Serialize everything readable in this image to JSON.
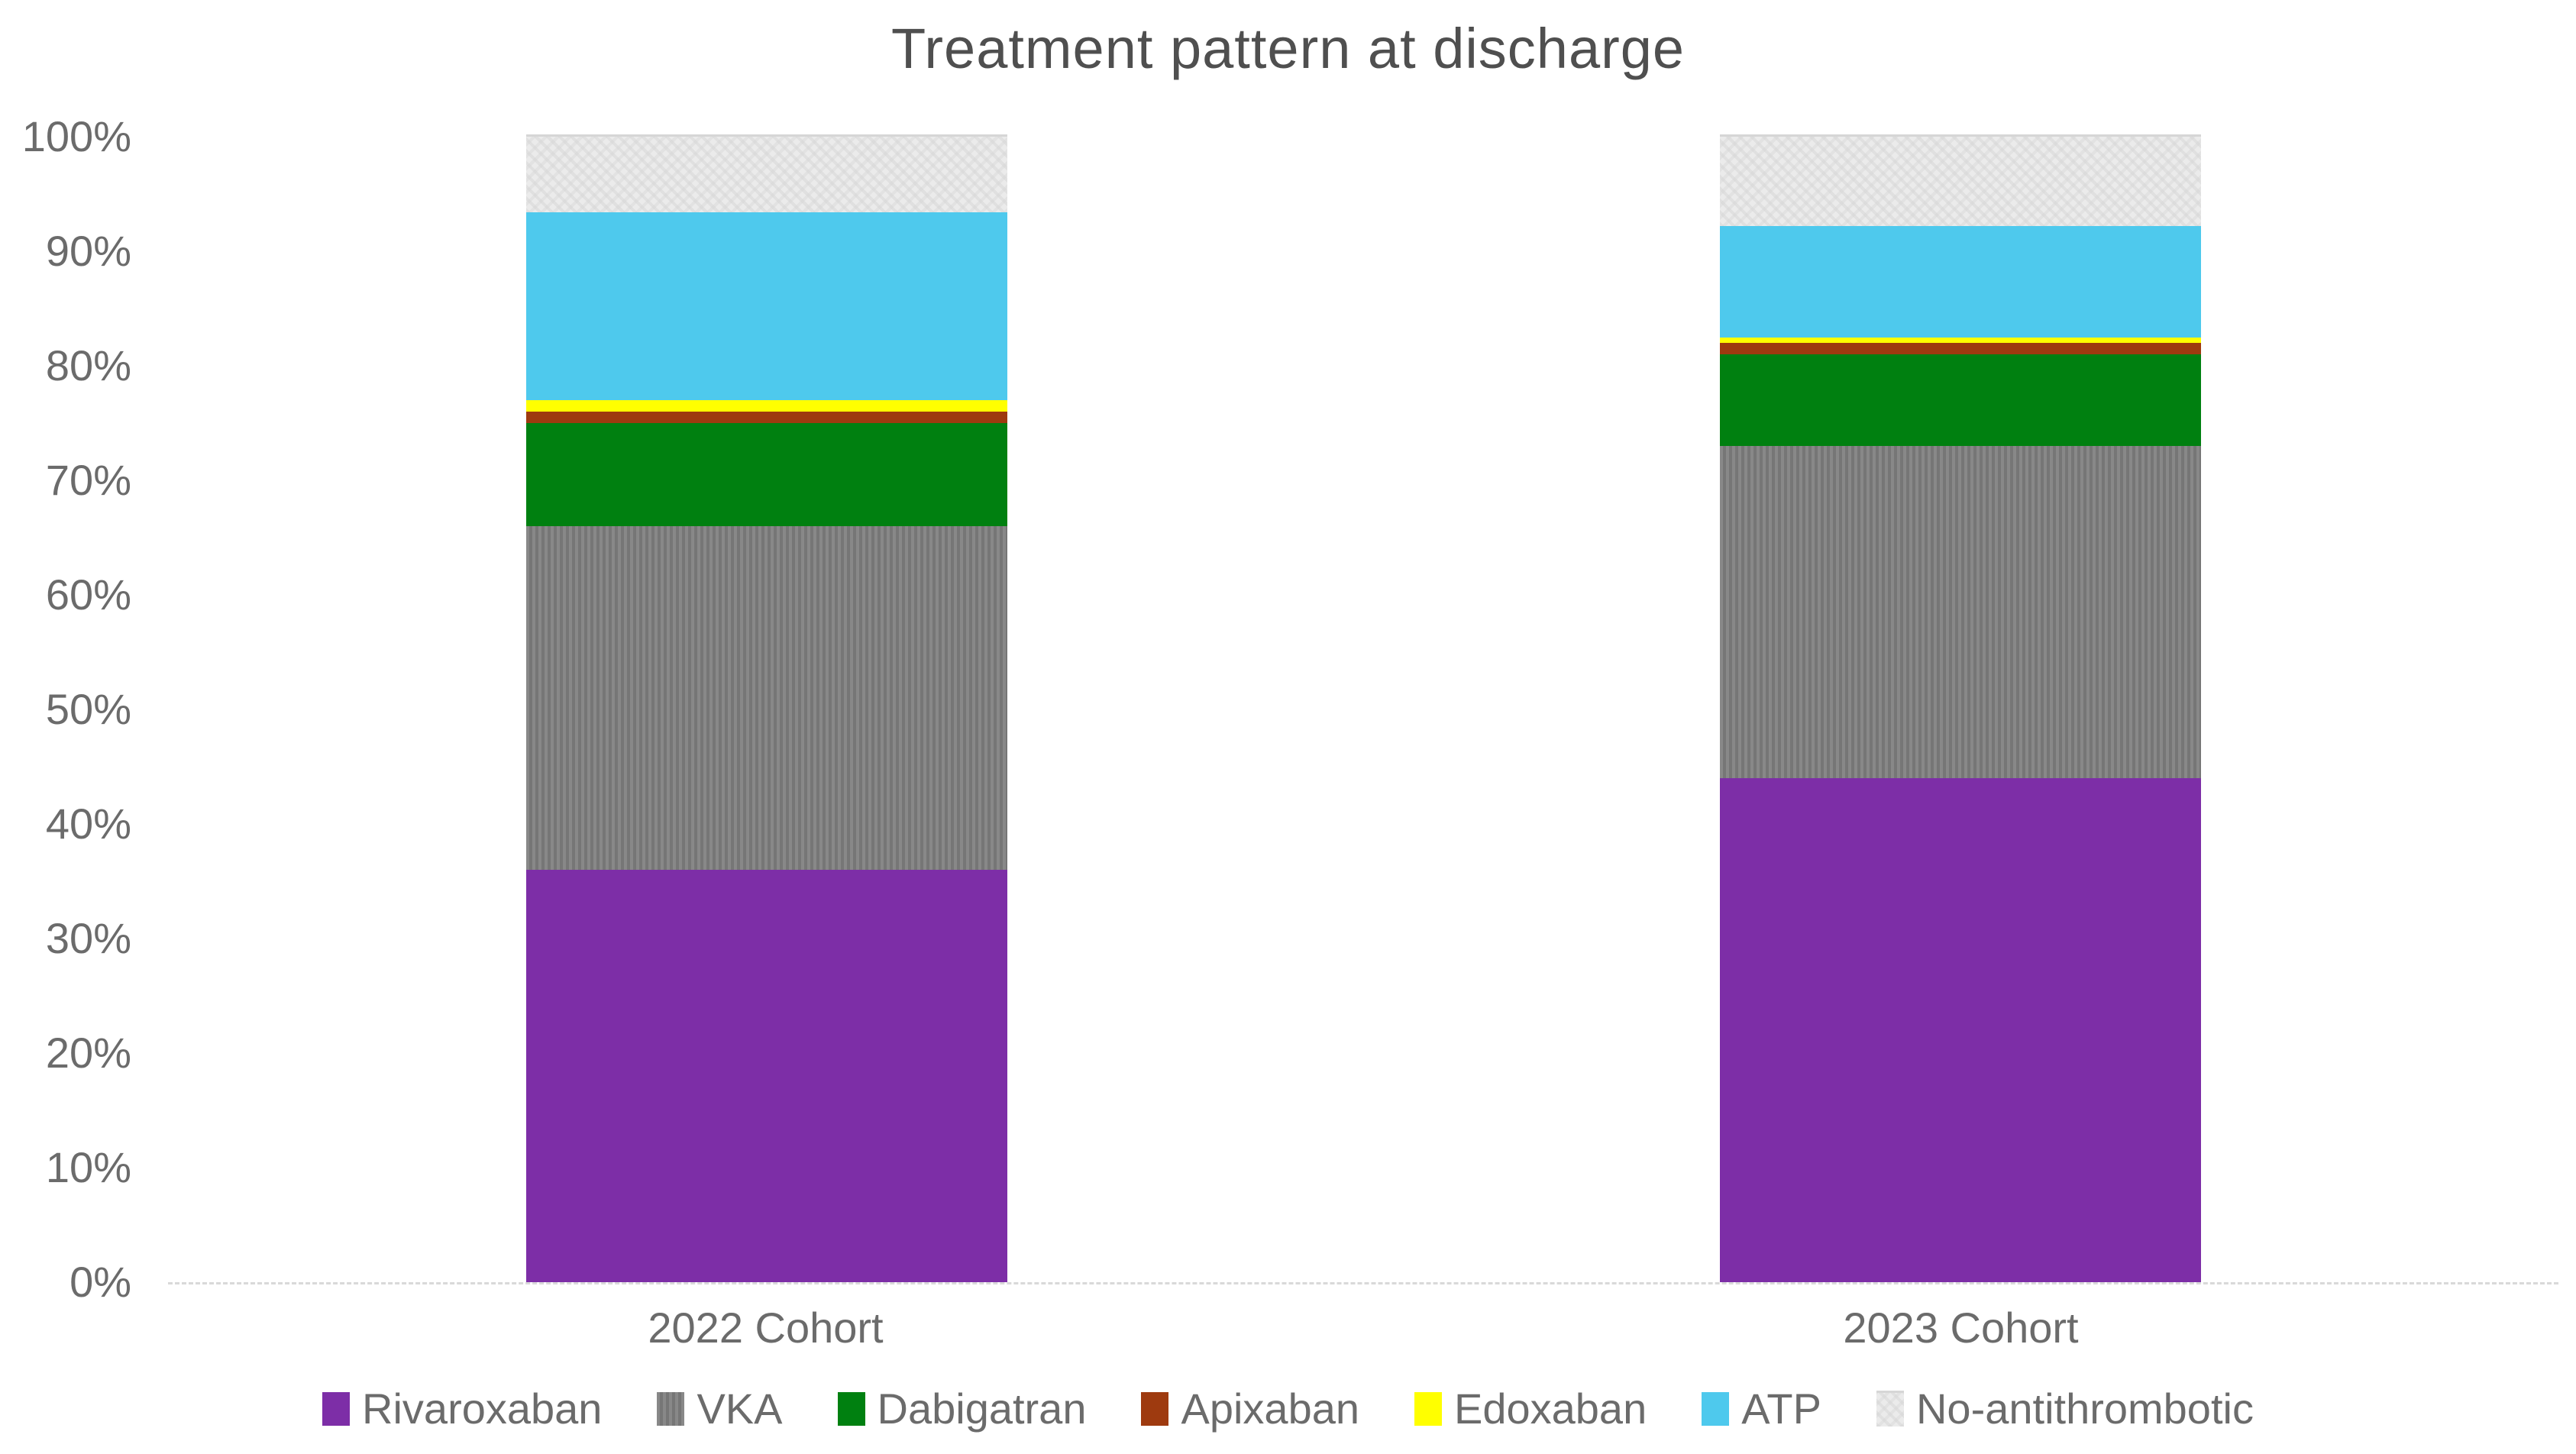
{
  "title": "Treatment pattern at discharge",
  "chart_data": {
    "type": "bar",
    "stacked": true,
    "units": "percent",
    "title": "Treatment pattern at discharge",
    "categories": [
      "2022 Cohort",
      "2023 Cohort"
    ],
    "series": [
      {
        "name": "Rivaroxaban",
        "color": "#7d2ea7",
        "pattern": "solid",
        "values": [
          36,
          44
        ]
      },
      {
        "name": "VKA",
        "color": "#7f7f7f",
        "pattern": "vstripes",
        "values": [
          30,
          29
        ]
      },
      {
        "name": "Dabigatran",
        "color": "#008010",
        "pattern": "solid",
        "values": [
          9,
          8
        ]
      },
      {
        "name": "Apixaban",
        "color": "#9e3a0f",
        "pattern": "solid",
        "values": [
          1,
          1
        ]
      },
      {
        "name": "Edoxaban",
        "color": "#ffff00",
        "pattern": "solid",
        "values": [
          1,
          0.5
        ]
      },
      {
        "name": "ATP",
        "color": "#4ec9ed",
        "pattern": "solid",
        "values": [
          16.4,
          9.7
        ]
      },
      {
        "name": "No-antithrombotic",
        "color": "#ebebeb",
        "pattern": "weave",
        "values": [
          6.6,
          7.8
        ]
      }
    ],
    "y_axis": {
      "min": 0,
      "max": 100,
      "step": 10,
      "tick_labels": [
        "0%",
        "10%",
        "20%",
        "30%",
        "40%",
        "50%",
        "60%",
        "70%",
        "80%",
        "90%",
        "100%"
      ]
    },
    "legend_position": "bottom",
    "gridlines": false,
    "axis_line_color": "#d9d9d9",
    "text_color": "#6b6b6b"
  }
}
